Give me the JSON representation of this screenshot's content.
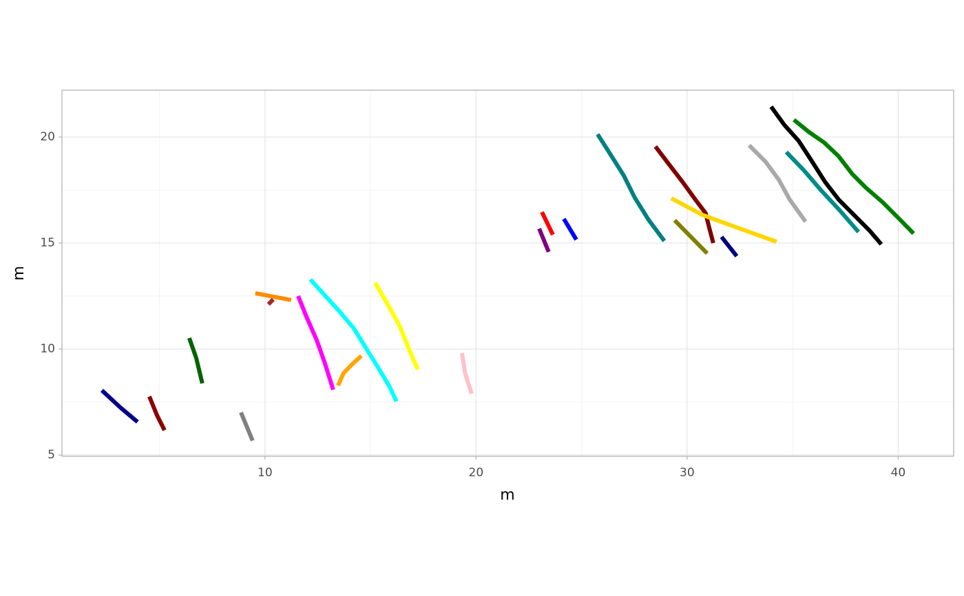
{
  "chart_data": {
    "type": "line",
    "xlabel": "m",
    "ylabel": "m",
    "xlim": [
      0.38,
      42.63
    ],
    "ylim": [
      4.94,
      22.21
    ],
    "xticks": [
      10,
      20,
      30,
      40
    ],
    "yticks": [
      5,
      10,
      15,
      20
    ],
    "x_minor_grid": [
      5,
      15,
      25,
      35
    ],
    "y_minor_grid": [
      7.5,
      12.5,
      17.5
    ],
    "grid": true,
    "series": [
      {
        "color": "#00008b",
        "x": [
          2.27,
          3.15,
          3.96
        ],
        "y": [
          8.05,
          7.24,
          6.56
        ]
      },
      {
        "color": "#8b0000",
        "x": [
          4.52,
          4.88,
          5.24
        ],
        "y": [
          7.76,
          6.88,
          6.17
        ]
      },
      {
        "color": "#006400",
        "x": [
          6.41,
          6.74,
          7.03
        ],
        "y": [
          10.52,
          9.58,
          8.38
        ]
      },
      {
        "color": "#808080",
        "x": [
          8.86,
          9.41
        ],
        "y": [
          7.01,
          5.68
        ]
      },
      {
        "color": "#ff8c00",
        "x": [
          9.54,
          11.24
        ],
        "y": [
          12.63,
          12.31
        ]
      },
      {
        "color": "#a52a2a",
        "x": [
          10.16,
          10.39
        ],
        "y": [
          12.11,
          12.34
        ]
      },
      {
        "color": "#ff00ff",
        "x": [
          11.57,
          11.96,
          12.45,
          12.84,
          13.23
        ],
        "y": [
          12.5,
          11.53,
          10.42,
          9.32,
          8.08
        ]
      },
      {
        "color": "#00ffff",
        "x": [
          12.15,
          12.77,
          13.49,
          14.21,
          14.73,
          15.32,
          15.87,
          16.23
        ],
        "y": [
          13.28,
          12.6,
          11.82,
          10.97,
          10.13,
          9.19,
          8.28,
          7.53
        ]
      },
      {
        "color": "#ffa500",
        "x": [
          13.46,
          13.72,
          14.14,
          14.57
        ],
        "y": [
          8.28,
          8.86,
          9.29,
          9.68
        ]
      },
      {
        "color": "#ffff00",
        "x": [
          15.22,
          15.81,
          16.39,
          16.79,
          17.24
        ],
        "y": [
          13.12,
          12.11,
          11.07,
          10.06,
          9.03
        ]
      },
      {
        "color": "#ffc0cb",
        "x": [
          19.33,
          19.49,
          19.79
        ],
        "y": [
          9.81,
          8.83,
          7.89
        ]
      },
      {
        "color": "#800080",
        "x": [
          22.99,
          23.44
        ],
        "y": [
          15.68,
          14.58
        ]
      },
      {
        "color": "#ff0000",
        "x": [
          23.12,
          23.64
        ],
        "y": [
          16.46,
          15.39
        ]
      },
      {
        "color": "#0000ff",
        "x": [
          24.16,
          24.75
        ],
        "y": [
          16.14,
          15.16
        ]
      },
      {
        "color": "#008080",
        "x": [
          25.76,
          26.38,
          27.0,
          27.52,
          28.17,
          28.92
        ],
        "y": [
          20.13,
          19.16,
          18.18,
          17.14,
          16.1,
          15.1
        ]
      },
      {
        "color": "#800000",
        "x": [
          28.5,
          29.15,
          29.8,
          30.39,
          30.88,
          31.04,
          31.24
        ],
        "y": [
          19.55,
          18.7,
          17.86,
          17.05,
          16.4,
          15.75,
          15.0
        ]
      },
      {
        "color": "#ffd700",
        "x": [
          29.25,
          30.72,
          32.58,
          34.24
        ],
        "y": [
          17.11,
          16.33,
          15.65,
          15.06
        ]
      },
      {
        "color": "#808000",
        "x": [
          29.41,
          30.95
        ],
        "y": [
          16.07,
          14.51
        ]
      },
      {
        "color": "#000080",
        "x": [
          31.63,
          32.35
        ],
        "y": [
          15.29,
          14.38
        ]
      },
      {
        "color": "#a9a9a9",
        "x": [
          32.94,
          33.72,
          34.34,
          34.86,
          35.61
        ],
        "y": [
          19.61,
          18.83,
          17.99,
          17.05,
          16.01
        ]
      },
      {
        "color": "#008b8b",
        "x": [
          34.7,
          35.55,
          36.36,
          37.24,
          38.12
        ],
        "y": [
          19.29,
          18.41,
          17.47,
          16.53,
          15.52
        ]
      },
      {
        "color": "#000000",
        "x": [
          33.98,
          34.6,
          35.29,
          35.91,
          36.53,
          37.18,
          37.93,
          38.65,
          39.2
        ],
        "y": [
          21.43,
          20.58,
          19.81,
          18.86,
          17.89,
          17.05,
          16.3,
          15.58,
          14.94
        ]
      },
      {
        "color": "#008000",
        "x": [
          35.06,
          35.78,
          36.49,
          37.18,
          37.83,
          38.48,
          39.27,
          40.02,
          40.73
        ],
        "y": [
          20.81,
          20.23,
          19.74,
          19.09,
          18.25,
          17.6,
          16.92,
          16.17,
          15.45
        ]
      }
    ]
  }
}
